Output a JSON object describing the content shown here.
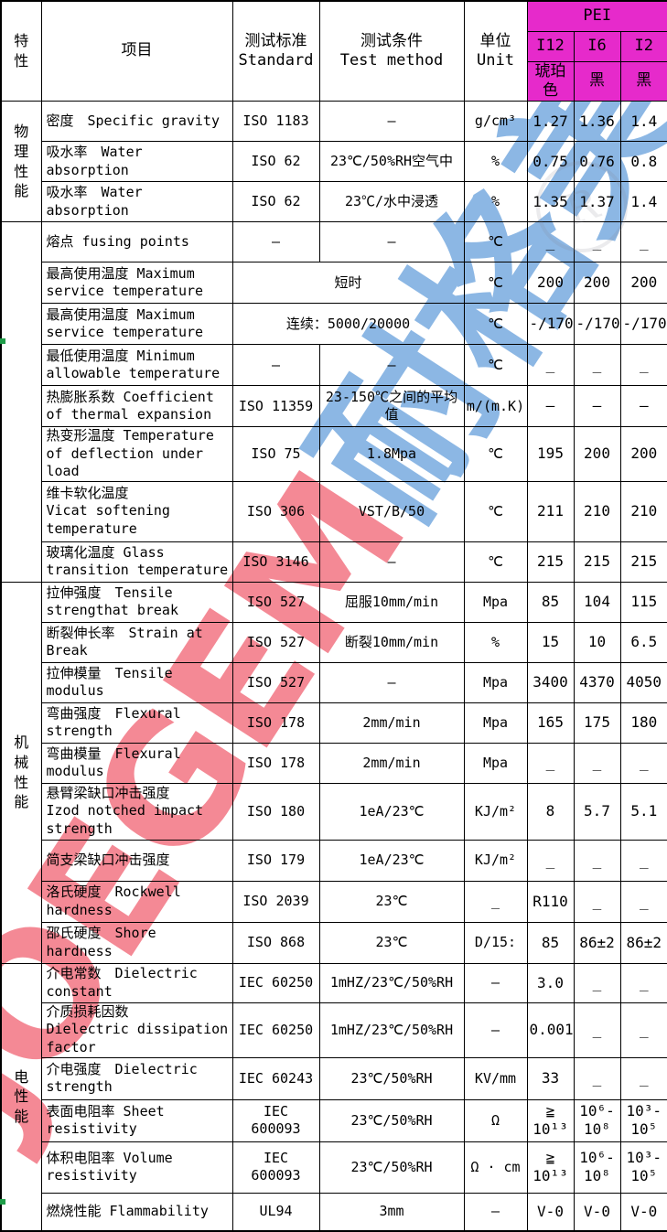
{
  "colors": {
    "header_bg": "#E62ACB",
    "watermark_red": "#F2707E",
    "watermark_blue": "#74A8DF",
    "border": "#000000"
  },
  "watermark": {
    "text_latin": "JOEGEM",
    "text_cjk": "耐格美",
    "stamp_letter": "R"
  },
  "header": {
    "feature": "特\n性",
    "item": "项目",
    "standard": "测试标准\nStandard",
    "method": "测试条件\nTest method",
    "unit": "单位\nUnit",
    "group": "PEI",
    "grades": [
      "I12",
      "I6",
      "I2"
    ],
    "grade_colors": [
      "琥珀色",
      "黑",
      "黑"
    ]
  },
  "table": {
    "sections": [
      {
        "label": "物\n理\n性\n能",
        "count": 3
      },
      {
        "label": "",
        "count": 8
      },
      {
        "label": "机\n械\n性\n能",
        "count": 9
      },
      {
        "label": "电\n性\n能",
        "count": 6
      }
    ],
    "rows": [
      {
        "label": "密度　Specific gravity",
        "std": "ISO 1183",
        "method": "–",
        "unit": "g/cm³",
        "values": [
          "1.27",
          "1.36",
          "1.4"
        ]
      },
      {
        "label": "吸水率　Water absorption",
        "std": "ISO 62",
        "method": "23℃/50%RH空气中",
        "unit": "%",
        "values": [
          "0.75",
          "0.76",
          "0.8"
        ]
      },
      {
        "label": "吸水率　Water absorption",
        "std": "ISO 62",
        "method": "23℃/水中浸透",
        "unit": "%",
        "values": [
          "1.35",
          "1.37",
          "1.4"
        ]
      },
      {
        "label": "熔点 fusing points",
        "std": "–",
        "method": "–",
        "unit": "℃",
        "values": [
          "_",
          "_",
          "_"
        ]
      },
      {
        "label": "最高使用温度 Maximum service temperature",
        "merged": "短时",
        "unit": "℃",
        "values": [
          "200",
          "200",
          "200"
        ]
      },
      {
        "label": "最高使用温度 Maximum service temperature",
        "merged": "连续：5000/20000",
        "unit": "℃",
        "values": [
          "-/170",
          "-/170",
          "-/170"
        ]
      },
      {
        "label": "最低使用温度 Minimum allowable temperature",
        "std": "–",
        "method": "–",
        "unit": "℃",
        "values": [
          "_",
          "_",
          "_"
        ]
      },
      {
        "label": "热膨胀系数 Coefficient of thermal expansion",
        "std": "ISO 11359",
        "method": "23-150℃之间的平均值",
        "unit": "m/(m.K)",
        "values": [
          "–",
          "–",
          "–"
        ]
      },
      {
        "label": "热变形温度 Temperature of deflection under load",
        "std": "ISO 75",
        "method": "1.8Mpa",
        "unit": "℃",
        "values": [
          "195",
          "200",
          "200"
        ]
      },
      {
        "label": "维卡软化温度\nVicat softening temperature",
        "std": "ISO 306",
        "method": "VST/B/50",
        "unit": "℃",
        "values": [
          "211",
          "210",
          "210"
        ]
      },
      {
        "label": "玻璃化温度 Glass transition temperature",
        "std": "ISO 3146",
        "method": "–",
        "unit": "℃",
        "values": [
          "215",
          "215",
          "215"
        ]
      },
      {
        "label": "拉伸强度　Tensile strengthat break",
        "std": "ISO 527",
        "method": "屈服10mm/min",
        "unit": "Mpa",
        "values": [
          "85",
          "104",
          "115"
        ]
      },
      {
        "label": "断裂伸长率　Strain at Break",
        "std": "ISO 527",
        "method": "断裂10mm/min",
        "unit": "%",
        "values": [
          "15",
          "10",
          "6.5"
        ]
      },
      {
        "label": "拉伸模量　Tensile modulus",
        "std": "ISO 527",
        "method": "–",
        "unit": "Mpa",
        "values": [
          "3400",
          "4370",
          "4050"
        ]
      },
      {
        "label": "弯曲强度　Flexural strength",
        "std": "ISO 178",
        "method": "2mm/min",
        "unit": "Mpa",
        "values": [
          "165",
          "175",
          "180"
        ]
      },
      {
        "label": "弯曲模量　Flexural modulus",
        "std": "ISO 178",
        "method": "2mm/min",
        "unit": "Mpa",
        "values": [
          "_",
          "_",
          "_"
        ]
      },
      {
        "label": "悬臂梁缺口冲击强度\nIzod notched impact strength",
        "std": "ISO 180",
        "method": "1eA/23℃",
        "unit": "KJ/m²",
        "values": [
          "8",
          "5.7",
          "5.1"
        ]
      },
      {
        "label": "简支梁缺口冲击强度",
        "std": "ISO 179",
        "method": "1eA/23℃",
        "unit": "KJ/m²",
        "values": [
          "_",
          "_",
          "_"
        ]
      },
      {
        "label": "洛氏硬度　Rockwell hardness",
        "std": "ISO 2039",
        "method": "23℃",
        "unit": "_",
        "values": [
          "R110",
          "_",
          "_"
        ]
      },
      {
        "label": "邵氏硬度　Shore hardness",
        "std": "ISO 868",
        "method": "23℃",
        "unit": "D/15:",
        "values": [
          "85",
          "86±2",
          "86±2"
        ]
      },
      {
        "label": "介电常数　Dielectric constant",
        "std": "IEC 60250",
        "method": "1mHZ/23℃/50%RH",
        "unit": "–",
        "values": [
          "3.0",
          "_",
          "_"
        ]
      },
      {
        "label": "介质损耗因数\nDielectric dissipation factor",
        "std": "IEC 60250",
        "method": "1mHZ/23℃/50%RH",
        "unit": "–",
        "values": [
          "0.001",
          "_",
          "_"
        ]
      },
      {
        "label": "介电强度　Dielectric strength",
        "std": "IEC 60243",
        "method": "23℃/50%RH",
        "unit": "KV/mm",
        "values": [
          "33",
          "_",
          "_"
        ]
      },
      {
        "label": "表面电阻率 Sheet resistivity",
        "std": "IEC 600093",
        "method": "23℃/50%RH",
        "unit": "Ω",
        "values": [
          "≧\n10¹³",
          "10⁶-\n10⁸",
          "10³-\n10⁵"
        ]
      },
      {
        "label": "体积电阻率 Volume resistivity",
        "std": "IEC 600093",
        "method": "23℃/50%RH",
        "unit": "Ω · cm",
        "values": [
          "≧\n10¹³",
          "10⁶-\n10⁸",
          "10³-\n10⁵"
        ]
      },
      {
        "label": "燃烧性能 Flammability",
        "std": "UL94",
        "method": "3mm",
        "unit": "–",
        "values": [
          "V-0",
          "V-0",
          "V-0"
        ]
      }
    ]
  }
}
